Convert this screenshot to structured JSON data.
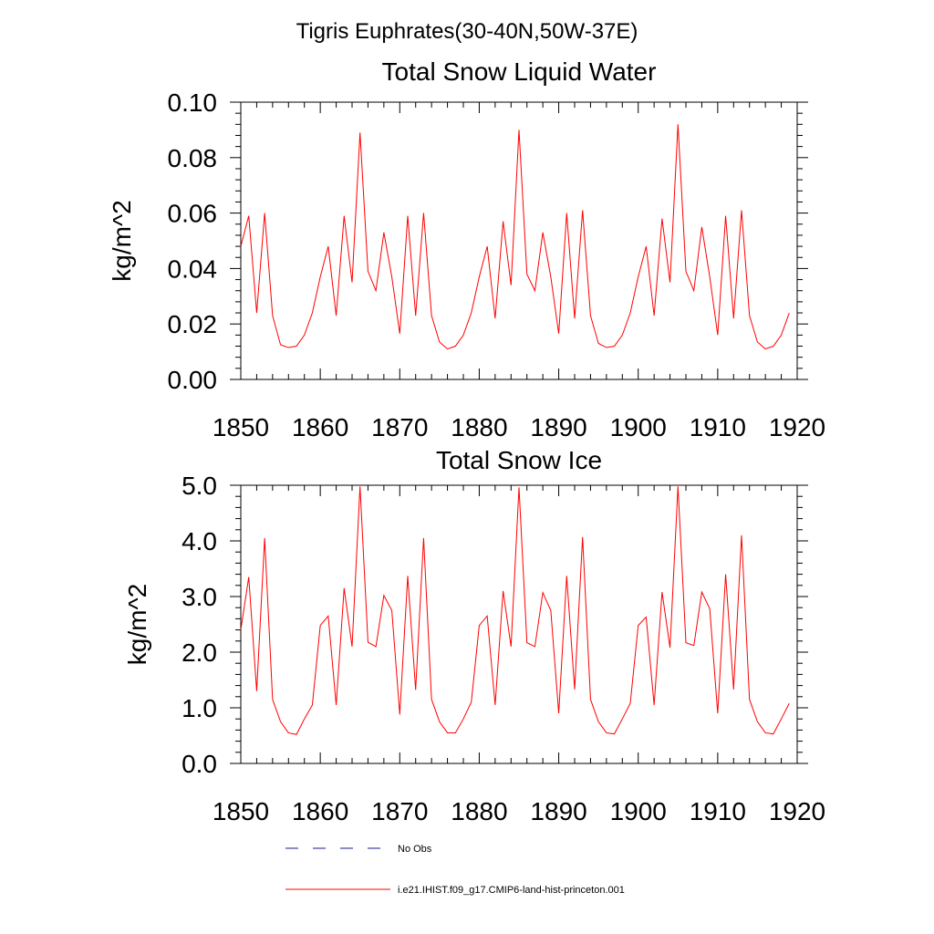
{
  "figure": {
    "suptitle": "Tigris Euphrates(30-40N,50W-37E)"
  },
  "legend": {
    "obs_label": "No Obs",
    "model_label": "i.e21.IHIST.f09_g17.CMIP6-land-hist-princeton.001",
    "obs_color": "#1a1a8c",
    "model_color": "#ff0000",
    "placement": "bottom"
  },
  "chart_data": [
    {
      "type": "line",
      "title": "Total Snow Liquid Water",
      "xlabel": "",
      "ylabel": "kg/m^2",
      "xlim": [
        1850,
        1920
      ],
      "ylim": [
        0.0,
        0.1
      ],
      "xticks": [
        1850,
        1860,
        1870,
        1880,
        1890,
        1900,
        1910,
        1920
      ],
      "yticks": [
        0.0,
        0.02,
        0.04,
        0.06,
        0.08,
        0.1
      ],
      "ytick_labels": [
        "0.00",
        "0.02",
        "0.04",
        "0.06",
        "0.08",
        "0.10"
      ],
      "grid": false,
      "series": [
        {
          "color": "#ff0000",
          "x_start": 1850,
          "x_step": 1,
          "values": [
            0.048,
            0.059,
            0.024,
            0.06,
            0.023,
            0.0125,
            0.0115,
            0.012,
            0.016,
            0.024,
            0.037,
            0.048,
            0.023,
            0.059,
            0.035,
            0.089,
            0.039,
            0.032,
            0.053,
            0.037,
            0.0165,
            0.059,
            0.023,
            0.06,
            0.023,
            0.0135,
            0.011,
            0.012,
            0.016,
            0.024,
            0.037,
            0.048,
            0.022,
            0.057,
            0.034,
            0.09,
            0.038,
            0.032,
            0.053,
            0.037,
            0.0165,
            0.06,
            0.022,
            0.061,
            0.023,
            0.013,
            0.0115,
            0.012,
            0.016,
            0.024,
            0.037,
            0.048,
            0.023,
            0.058,
            0.035,
            0.092,
            0.039,
            0.032,
            0.055,
            0.037,
            0.016,
            0.059,
            0.022,
            0.061,
            0.023,
            0.0135,
            0.011,
            0.012,
            0.016,
            0.024
          ]
        }
      ]
    },
    {
      "type": "line",
      "title": "Total Snow Ice",
      "xlabel": "",
      "ylabel": "kg/m^2",
      "xlim": [
        1850,
        1920
      ],
      "ylim": [
        0.0,
        5.0
      ],
      "xticks": [
        1850,
        1860,
        1870,
        1880,
        1890,
        1900,
        1910,
        1920
      ],
      "yticks": [
        0.0,
        1.0,
        2.0,
        3.0,
        4.0,
        5.0
      ],
      "ytick_labels": [
        "0.0",
        "1.0",
        "2.0",
        "3.0",
        "4.0",
        "5.0"
      ],
      "grid": false,
      "series": [
        {
          "color": "#ff0000",
          "x_start": 1850,
          "x_step": 1,
          "values": [
            2.4,
            3.35,
            1.3,
            4.05,
            1.15,
            0.75,
            0.55,
            0.52,
            0.8,
            1.05,
            2.48,
            2.65,
            1.05,
            3.15,
            2.1,
            4.98,
            2.18,
            2.1,
            3.02,
            2.75,
            0.88,
            3.37,
            1.32,
            4.05,
            1.15,
            0.75,
            0.55,
            0.55,
            0.8,
            1.1,
            2.48,
            2.65,
            1.05,
            3.1,
            2.1,
            4.96,
            2.17,
            2.1,
            3.07,
            2.75,
            0.9,
            3.37,
            1.33,
            4.07,
            1.15,
            0.75,
            0.55,
            0.53,
            0.8,
            1.08,
            2.48,
            2.63,
            1.05,
            3.08,
            2.08,
            4.98,
            2.17,
            2.12,
            3.08,
            2.78,
            0.9,
            3.4,
            1.33,
            4.1,
            1.15,
            0.75,
            0.55,
            0.53,
            0.8,
            1.08
          ]
        }
      ]
    }
  ]
}
